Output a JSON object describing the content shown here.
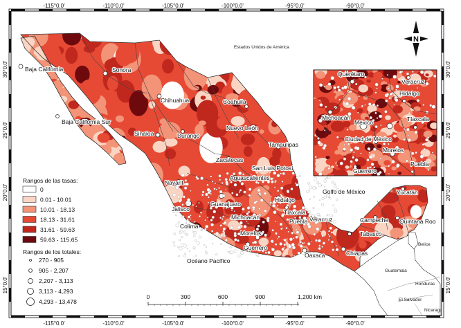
{
  "colors": {
    "class0": "#ffffff",
    "class1": "#fbd5c4",
    "class2": "#f39377",
    "class3": "#e64a35",
    "class4": "#c0281e",
    "class5": "#6e0a0e",
    "land_other": "#ffffff",
    "water": "#ffffff"
  },
  "lon_ticks": [
    "-115°0.0'",
    "-110°0.0'",
    "-105°0.0'",
    "-100°0.0'",
    "-95°0.0'",
    "-90°0.0'"
  ],
  "lat_ticks": [
    "30°0.0'",
    "25°0.0'",
    "20°0.0'",
    "15°0.0'"
  ],
  "country_labels": {
    "usa": "Estados Unidos de América",
    "gulf": "Golfo de México",
    "pacific": "Océano Pacífico",
    "belice": "Belice",
    "guatemala": "Guatemala",
    "honduras": "Honduras",
    "elsalvador": "El Salvador",
    "nicaragua": "Nicaragua"
  },
  "states": [
    {
      "name": "Baja California"
    },
    {
      "name": "Sonora"
    },
    {
      "name": "Chihuahua"
    },
    {
      "name": "Baja California Sur"
    },
    {
      "name": "Coahuila"
    },
    {
      "name": "Nuevo León"
    },
    {
      "name": "Sinaloa"
    },
    {
      "name": "Durango"
    },
    {
      "name": "Tamaulipas"
    },
    {
      "name": "Zacatecas"
    },
    {
      "name": "San Luis Potosí"
    },
    {
      "name": "Nayarit"
    },
    {
      "name": "Aguascalientes"
    },
    {
      "name": "Jalisco"
    },
    {
      "name": "Guanajuato"
    },
    {
      "name": "Hidalgo"
    },
    {
      "name": "Tlaxcala"
    },
    {
      "name": "Veracruz"
    },
    {
      "name": "Puebla"
    },
    {
      "name": "Michoacán"
    },
    {
      "name": "Colima"
    },
    {
      "name": "Morelos"
    },
    {
      "name": "Guerrero"
    },
    {
      "name": "Oaxaca"
    },
    {
      "name": "Chiapas"
    },
    {
      "name": "Tabasco"
    },
    {
      "name": "Campeche"
    },
    {
      "name": "Yucatán"
    },
    {
      "name": "Quintana Roo"
    }
  ],
  "inset_labels": [
    {
      "name": "Querétaro"
    },
    {
      "name": "Veracruz"
    },
    {
      "name": "Hidalgo"
    },
    {
      "name": "Michoacán"
    },
    {
      "name": "México"
    },
    {
      "name": "Tlaxcala"
    },
    {
      "name": "Ciudad de México"
    },
    {
      "name": "Morelos"
    },
    {
      "name": "Puebla"
    },
    {
      "name": "Guerrero"
    }
  ],
  "legend_rates": {
    "title": "Rangos de las tasas:",
    "items": [
      "0",
      "0.01 - 10.01",
      "10.01 - 18.13",
      "18.13 - 31.61",
      "31.61 - 59.63",
      "59.63 - 115.65"
    ]
  },
  "legend_totals": {
    "title": "Rangos de los totales:",
    "items": [
      "270 - 905",
      "905 - 2,207",
      "2,207 - 3,113",
      "3,113 - 4,293",
      "4,293 - 13,478"
    ]
  },
  "scale_bar": {
    "labels": [
      "0",
      "300",
      "600",
      "900",
      "1,200 km"
    ]
  },
  "north_arrow": {
    "label": "N"
  }
}
